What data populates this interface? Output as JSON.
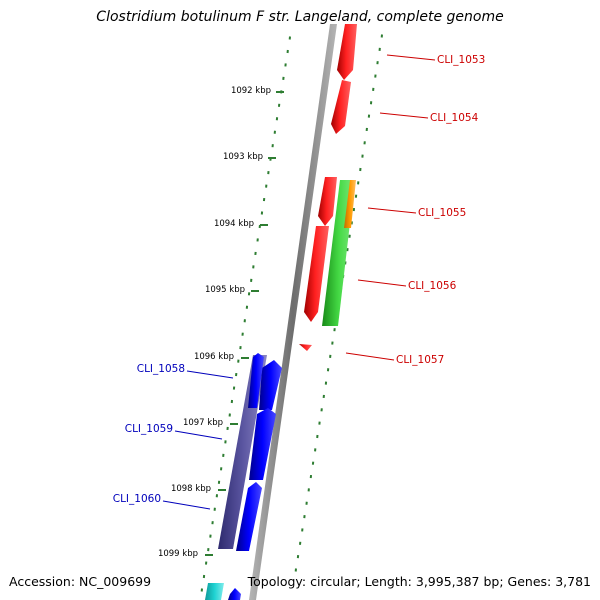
{
  "title": "Clostridium botulinum F str. Langeland, complete genome",
  "footer": {
    "accession": "Accession: NC_009699",
    "topology": "Topology: circular; Length: 3,995,387 bp; Genes: 3,781"
  },
  "colors": {
    "backbone": "#8a8a8a",
    "tick": "#2e7d32",
    "red": "#ff0000",
    "green": "#3cd23c",
    "orange": "#ff9a00",
    "blue": "#0000ff",
    "slate": "#55509a",
    "cyan": "#19cfcf",
    "label_red": "#cc0000",
    "label_blue": "#0000bb"
  },
  "ticks": [
    {
      "label": "1092 kbp"
    },
    {
      "label": "1093 kbp"
    },
    {
      "label": "1094 kbp"
    },
    {
      "label": "1095 kbp"
    },
    {
      "label": "1096 kbp"
    },
    {
      "label": "1097 kbp"
    },
    {
      "label": "1098 kbp"
    },
    {
      "label": "1099 kbp"
    }
  ],
  "genes_right": [
    {
      "label": "CLI_1053",
      "color": "red"
    },
    {
      "label": "CLI_1054",
      "color": "red"
    },
    {
      "label": "CLI_1055",
      "color": "red"
    },
    {
      "label": "CLI_1056",
      "color": "red"
    },
    {
      "label": "CLI_1057",
      "color": "red"
    }
  ],
  "genes_left": [
    {
      "label": "CLI_1058",
      "color": "blue"
    },
    {
      "label": "CLI_1059",
      "color": "blue"
    },
    {
      "label": "CLI_1060",
      "color": "blue"
    }
  ]
}
